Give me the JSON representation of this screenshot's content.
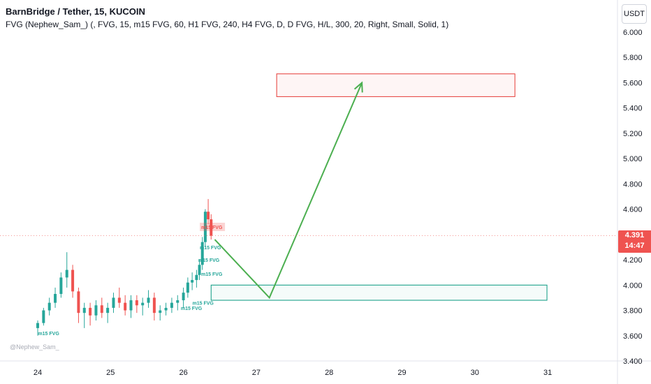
{
  "legend": {
    "title": "BarnBridge / Tether, 15, KUCOIN",
    "indicator": "FVG (Nephew_Sam_) (, FVG, 15, m15 FVG, 60, H1 FVG, 240, H4 FVG, D, D FVG, H/L, 300, 20, Right, Small, Solid, 1)"
  },
  "currency_button": "USDT",
  "last_price": {
    "value": "4.391",
    "countdown": "14:47"
  },
  "watermark": "@Nephew_Sam_",
  "colors": {
    "up": "#26a69a",
    "down": "#ef5350",
    "arrow": "#4caf50",
    "bear_zone": "#e53935",
    "bull_zone": "#089981"
  },
  "chart_data": {
    "type": "candlestick",
    "symbol": "BarnBridge / Tether",
    "interval": "15",
    "exchange": "KUCOIN",
    "price_axis": [
      "6.000",
      "5.800",
      "5.600",
      "5.400",
      "5.200",
      "5.000",
      "4.800",
      "4.600",
      "4.400",
      "4.200",
      "4.000",
      "3.800",
      "3.600",
      "3.400"
    ],
    "ylim": [
      3.4,
      6.0
    ],
    "date_axis": [
      "24",
      "25",
      "26",
      "27",
      "28",
      "29",
      "30",
      "31"
    ],
    "candles": [
      {
        "t": 0.0,
        "o": 3.66,
        "h": 3.72,
        "l": 3.6,
        "c": 3.7
      },
      {
        "t": 0.08,
        "o": 3.7,
        "h": 3.82,
        "l": 3.68,
        "c": 3.8
      },
      {
        "t": 0.16,
        "o": 3.8,
        "h": 3.9,
        "l": 3.76,
        "c": 3.86
      },
      {
        "t": 0.24,
        "o": 3.86,
        "h": 3.98,
        "l": 3.82,
        "c": 3.93
      },
      {
        "t": 0.32,
        "o": 3.93,
        "h": 4.1,
        "l": 3.9,
        "c": 4.06
      },
      {
        "t": 0.4,
        "o": 4.06,
        "h": 4.26,
        "l": 3.98,
        "c": 4.12
      },
      {
        "t": 0.48,
        "o": 4.12,
        "h": 4.16,
        "l": 3.9,
        "c": 3.95
      },
      {
        "t": 0.56,
        "o": 3.95,
        "h": 3.98,
        "l": 3.7,
        "c": 3.78
      },
      {
        "t": 0.64,
        "o": 3.78,
        "h": 3.86,
        "l": 3.66,
        "c": 3.82
      },
      {
        "t": 0.72,
        "o": 3.82,
        "h": 3.86,
        "l": 3.68,
        "c": 3.76
      },
      {
        "t": 0.8,
        "o": 3.76,
        "h": 3.88,
        "l": 3.72,
        "c": 3.84
      },
      {
        "t": 0.88,
        "o": 3.84,
        "h": 3.9,
        "l": 3.74,
        "c": 3.78
      },
      {
        "t": 0.96,
        "o": 3.78,
        "h": 3.86,
        "l": 3.7,
        "c": 3.82
      },
      {
        "t": 1.04,
        "o": 3.82,
        "h": 3.94,
        "l": 3.78,
        "c": 3.9
      },
      {
        "t": 1.12,
        "o": 3.9,
        "h": 3.98,
        "l": 3.82,
        "c": 3.86
      },
      {
        "t": 1.2,
        "o": 3.86,
        "h": 3.92,
        "l": 3.76,
        "c": 3.8
      },
      {
        "t": 1.28,
        "o": 3.8,
        "h": 3.92,
        "l": 3.74,
        "c": 3.88
      },
      {
        "t": 1.36,
        "o": 3.88,
        "h": 3.92,
        "l": 3.78,
        "c": 3.84
      },
      {
        "t": 1.44,
        "o": 3.84,
        "h": 3.9,
        "l": 3.76,
        "c": 3.86
      },
      {
        "t": 1.52,
        "o": 3.86,
        "h": 3.96,
        "l": 3.82,
        "c": 3.9
      },
      {
        "t": 1.6,
        "o": 3.9,
        "h": 3.94,
        "l": 3.72,
        "c": 3.78
      },
      {
        "t": 1.68,
        "o": 3.78,
        "h": 3.84,
        "l": 3.72,
        "c": 3.8
      },
      {
        "t": 1.76,
        "o": 3.8,
        "h": 3.86,
        "l": 3.76,
        "c": 3.82
      },
      {
        "t": 1.84,
        "o": 3.82,
        "h": 3.9,
        "l": 3.78,
        "c": 3.86
      },
      {
        "t": 1.92,
        "o": 3.86,
        "h": 3.92,
        "l": 3.8,
        "c": 3.88
      },
      {
        "t": 2.0,
        "o": 3.88,
        "h": 3.98,
        "l": 3.82,
        "c": 3.94
      },
      {
        "t": 2.06,
        "o": 3.94,
        "h": 4.06,
        "l": 3.9,
        "c": 4.02
      },
      {
        "t": 2.12,
        "o": 4.02,
        "h": 4.1,
        "l": 3.96,
        "c": 4.04
      },
      {
        "t": 2.18,
        "o": 4.04,
        "h": 4.12,
        "l": 3.98,
        "c": 4.08
      },
      {
        "t": 2.22,
        "o": 4.08,
        "h": 4.2,
        "l": 4.04,
        "c": 4.16
      },
      {
        "t": 2.26,
        "o": 4.16,
        "h": 4.38,
        "l": 4.12,
        "c": 4.34
      },
      {
        "t": 2.3,
        "o": 4.34,
        "h": 4.6,
        "l": 4.3,
        "c": 4.58
      },
      {
        "t": 2.34,
        "o": 4.58,
        "h": 4.68,
        "l": 4.48,
        "c": 4.52
      },
      {
        "t": 2.38,
        "o": 4.52,
        "h": 4.56,
        "l": 4.36,
        "c": 4.39
      }
    ],
    "fvg_labels": [
      {
        "text": "m15 FVG",
        "t": 2.34,
        "price": 4.46,
        "type": "bearish"
      },
      {
        "text": "m15 FVG",
        "t": 2.32,
        "price": 4.3,
        "type": "bullish"
      },
      {
        "text": "m15 FVG",
        "t": 2.3,
        "price": 4.2,
        "type": "bullish"
      },
      {
        "text": "m15 FVG",
        "t": 2.34,
        "price": 4.09,
        "type": "bullish"
      },
      {
        "text": "m15 FVG",
        "t": 2.22,
        "price": 3.86,
        "type": "bullish"
      },
      {
        "text": "m15 FVG",
        "t": 2.06,
        "price": 3.82,
        "type": "bullish"
      },
      {
        "text": "m15 FVG",
        "t": 0.1,
        "price": 3.62,
        "type": "bullish"
      }
    ],
    "drawings": {
      "target_zone": {
        "t_start": 3.28,
        "t_end": 6.55,
        "price_low": 5.49,
        "price_high": 5.67
      },
      "demand_zone": {
        "t_start": 2.38,
        "t_end": 6.99,
        "price_low": 3.88,
        "price_high": 4.0
      },
      "projection_path": [
        {
          "t": 2.43,
          "price": 4.36
        },
        {
          "t": 3.18,
          "price": 3.9
        },
        {
          "t": 4.45,
          "price": 5.6
        }
      ]
    }
  }
}
